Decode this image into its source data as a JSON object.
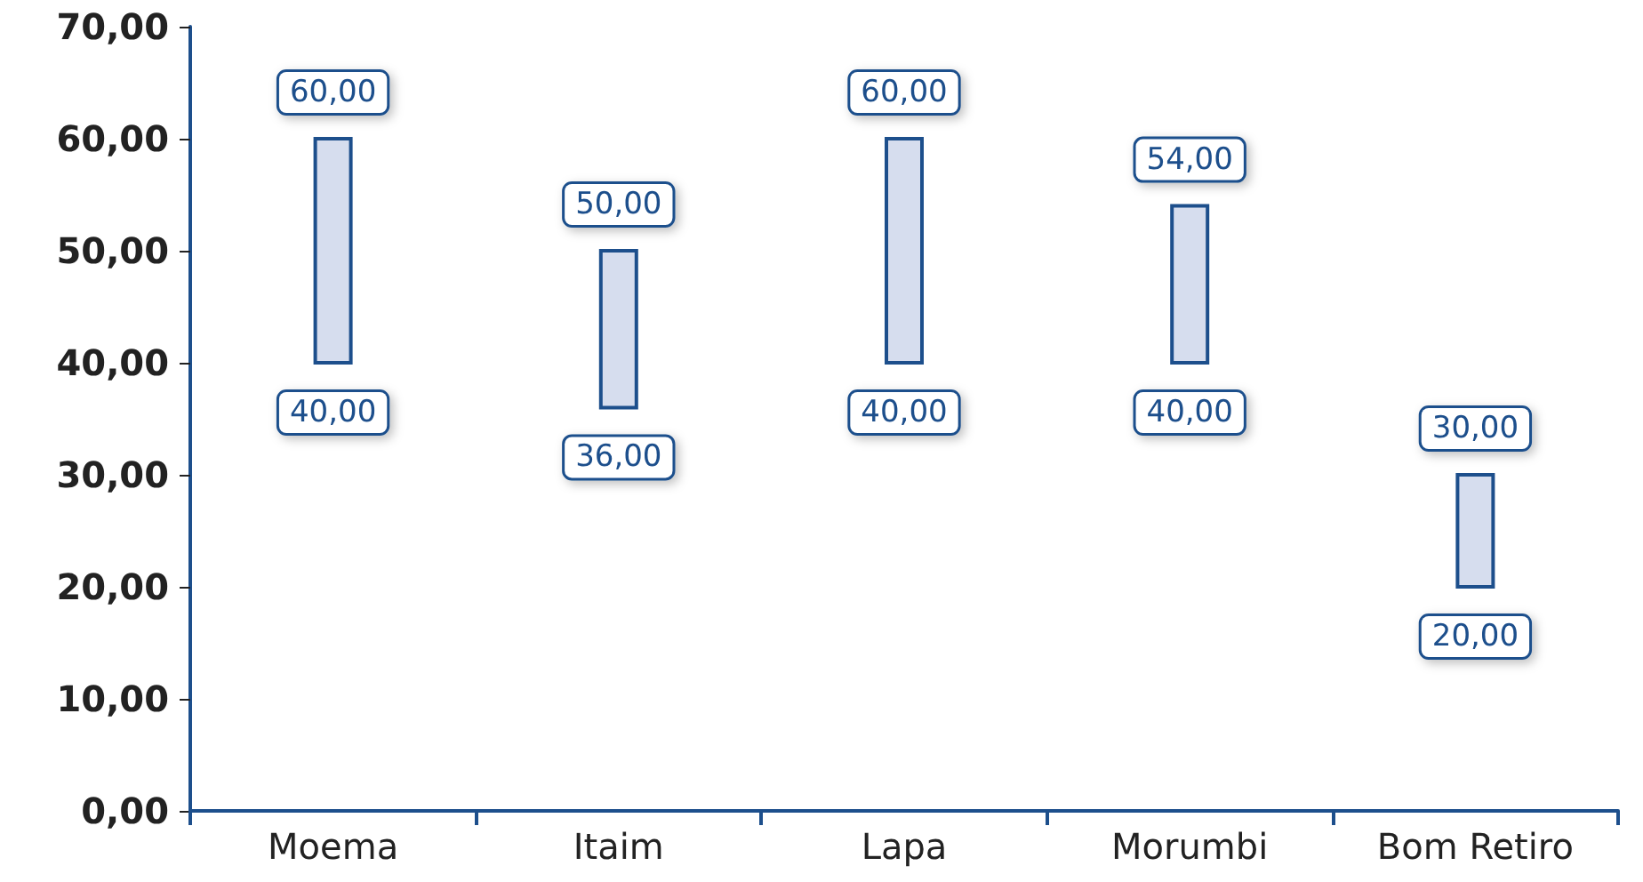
{
  "chart_data": {
    "type": "bar",
    "categories": [
      "Moema",
      "Itaim",
      "Lapa",
      "Morumbi",
      "Bom Retiro"
    ],
    "base": [
      40,
      36,
      40,
      40,
      20
    ],
    "values": [
      20,
      14,
      20,
      14,
      10
    ],
    "color": "#d6ddee",
    "ylim": [
      0,
      70
    ],
    "yticks": [
      {
        "value": 0,
        "label": "0,00"
      },
      {
        "value": 10,
        "label": "10,00"
      },
      {
        "value": 20,
        "label": "20,00"
      },
      {
        "value": 30,
        "label": "30,00"
      },
      {
        "value": 40,
        "label": "40,00"
      },
      {
        "value": 50,
        "label": "50,00"
      },
      {
        "value": 60,
        "label": "60,00"
      },
      {
        "value": 70,
        "label": "70,00"
      }
    ],
    "grid": false,
    "annotations": [
      {
        "text": "60,00",
        "x": "Moema",
        "y": 60
      },
      {
        "text": "40,00",
        "x": "Moema",
        "y": 40
      },
      {
        "text": "50,00",
        "x": "Itaim",
        "y": 50
      },
      {
        "text": "36,00",
        "x": "Itaim",
        "y": 36
      },
      {
        "text": "60,00",
        "x": "Lapa",
        "y": 60
      },
      {
        "text": "40,00",
        "x": "Lapa",
        "y": 40
      },
      {
        "text": "54,00",
        "x": "Morumbi",
        "y": 54
      },
      {
        "text": "40,00",
        "x": "Morumbi",
        "y": 40
      },
      {
        "text": "30,00",
        "x": "Bom Retiro",
        "y": 30
      },
      {
        "text": "20,00",
        "x": "Bom Retiro",
        "y": 20
      }
    ]
  }
}
